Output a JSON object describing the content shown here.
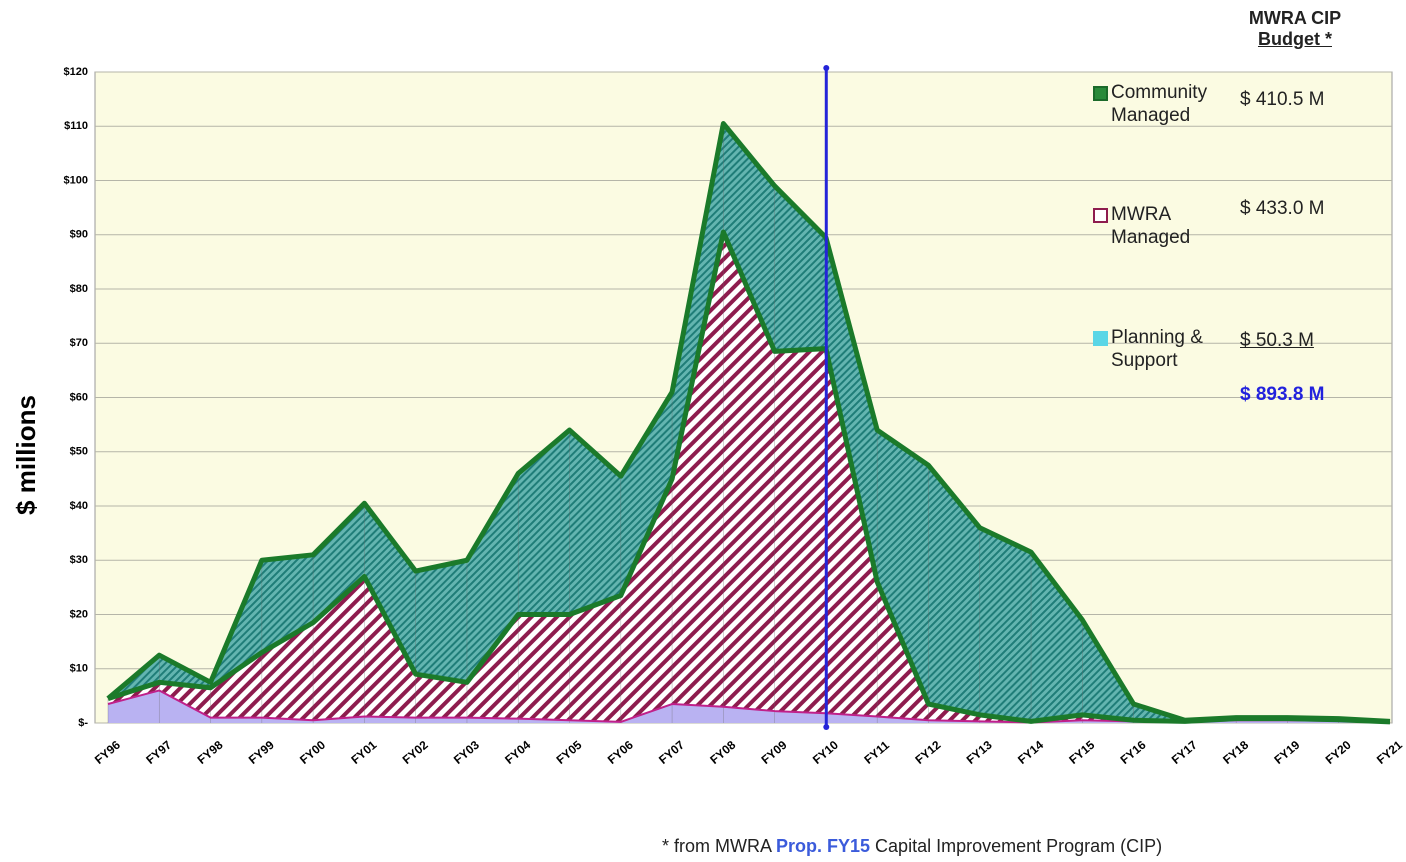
{
  "chart_data": {
    "type": "stacked-area",
    "y_label": "$ millions",
    "categories": [
      "FY96",
      "FY97",
      "FY98",
      "FY99",
      "FY00",
      "FY01",
      "FY02",
      "FY03",
      "FY04",
      "FY05",
      "FY06",
      "FY07",
      "FY08",
      "FY09",
      "FY10",
      "FY11",
      "FY12",
      "FY13",
      "FY14",
      "FY15",
      "FY16",
      "FY17",
      "FY18",
      "FY19",
      "FY20",
      "FY21"
    ],
    "series": [
      {
        "name": "Planning & Support",
        "color": "#b9b2f2",
        "legend_color": "#5ad6e6",
        "values": [
          3.5,
          6,
          1,
          1,
          0.5,
          1.2,
          1,
          1,
          0.8,
          0.5,
          0.2,
          3.5,
          3,
          2.2,
          1.8,
          1.2,
          0.5,
          0.3,
          0.1,
          0.5,
          0.3,
          0.2,
          0.5,
          0.5,
          0.4,
          0.1
        ]
      },
      {
        "name": "MWRA Managed",
        "color": "#8e1c4e",
        "values": [
          1,
          1.5,
          5.5,
          12,
          18,
          25.8,
          8,
          6.5,
          19.2,
          19.5,
          23.3,
          41.5,
          87.5,
          66.3,
          67.2,
          24.8,
          3,
          1.2,
          0.2,
          1,
          0.2,
          0.1,
          0.3,
          0.3,
          0.2,
          0.1
        ]
      },
      {
        "name": "Community Managed",
        "color": "#3c9a96",
        "values": [
          0,
          5,
          1,
          17,
          12.5,
          13.5,
          19,
          22.5,
          26,
          34,
          22,
          16,
          20,
          30.5,
          20.5,
          28,
          44,
          34.5,
          31.2,
          17.5,
          3,
          0.2,
          0.2,
          0.2,
          0.2,
          0.1
        ]
      }
    ],
    "ylim": [
      0,
      120
    ],
    "yticks": [
      {
        "value": 0,
        "label": "$-"
      },
      {
        "value": 10,
        "label": "$10"
      },
      {
        "value": 20,
        "label": "$20"
      },
      {
        "value": 30,
        "label": "$30"
      },
      {
        "value": 40,
        "label": "$40"
      },
      {
        "value": 50,
        "label": "$50"
      },
      {
        "value": 60,
        "label": "$60"
      },
      {
        "value": 70,
        "label": "$70"
      },
      {
        "value": 80,
        "label": "$80"
      },
      {
        "value": 90,
        "label": "$90"
      },
      {
        "value": 100,
        "label": "$100"
      },
      {
        "value": 110,
        "label": "$110"
      },
      {
        "value": 120,
        "label": "$120"
      }
    ],
    "grid": true,
    "budget": {
      "title": [
        "MWRA CIP",
        "Budget *"
      ],
      "values": [
        "$ 50.3 M",
        "$ 433.0 M",
        "$ 410.5 M"
      ],
      "total": "$ 893.8 M"
    },
    "footnote": [
      "* from MWRA ",
      "Prop. FY15",
      " Capital Improvement Program (CIP)"
    ]
  }
}
